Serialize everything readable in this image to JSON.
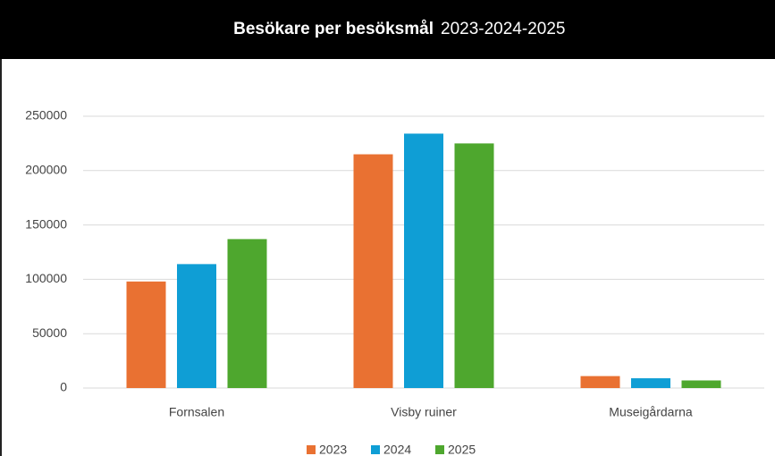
{
  "chart_data": {
    "type": "bar",
    "title": "Besökare per besöksmål",
    "subtitle": "2023-2024-2025",
    "categories": [
      "Fornsalen",
      "Visby ruiner",
      "Museigårdarna"
    ],
    "series": [
      {
        "name": "2023",
        "color": "#e97132",
        "values": [
          98000,
          215000,
          11000
        ]
      },
      {
        "name": "2024",
        "color": "#0f9ed5",
        "values": [
          114000,
          234000,
          9000
        ]
      },
      {
        "name": "2025",
        "color": "#4ea72e",
        "values": [
          137000,
          225000,
          7000
        ]
      }
    ],
    "ylim": [
      0,
      250000
    ],
    "yticks": [
      0,
      50000,
      100000,
      150000,
      200000,
      250000
    ],
    "grid": true,
    "legend": "bottom"
  }
}
